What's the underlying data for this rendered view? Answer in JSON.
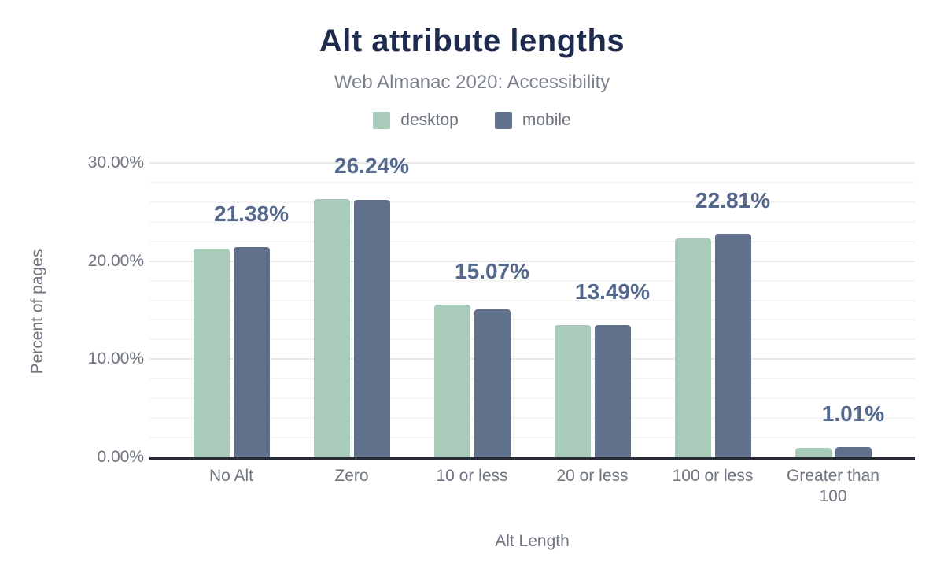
{
  "chart_data": {
    "type": "bar",
    "title": "Alt attribute lengths",
    "subtitle": "Web Almanac 2020: Accessibility",
    "categories": [
      "No Alt",
      "Zero",
      "10 or less",
      "20 or less",
      "100 or less",
      "Greater than 100"
    ],
    "series": [
      {
        "name": "desktop",
        "color": "#a8cbba",
        "values": [
          21.26,
          26.31,
          15.6,
          13.46,
          22.28,
          0.93
        ]
      },
      {
        "name": "mobile",
        "color": "#61708b",
        "values": [
          21.38,
          26.24,
          15.07,
          13.49,
          22.81,
          1.01
        ]
      }
    ],
    "data_labels": [
      "21.38%",
      "26.24%",
      "15.07%",
      "13.49%",
      "22.81%",
      "1.01%"
    ],
    "data_labels_series": "mobile",
    "xlabel": "Alt Length",
    "ylabel": "Percent of pages",
    "ylim": [
      0,
      30
    ],
    "yticks": [
      {
        "value": 0,
        "label": "0.00%"
      },
      {
        "value": 10,
        "label": "10.00%"
      },
      {
        "value": 20,
        "label": "20.00%"
      },
      {
        "value": 30,
        "label": "30.00%"
      }
    ],
    "grid": {
      "minor_step": 2,
      "major_step": 10,
      "orientation": "horizontal"
    },
    "legend_position": "top"
  },
  "colors": {
    "title": "#1e2b4d",
    "subtitle": "#7c828c",
    "axis_text": "#6f7580",
    "data_label": "#54678c",
    "axis_line": "#262b35",
    "gridline_minor": "#f5f5f5",
    "gridline_major": "#e9e9e9",
    "background": "#ffffff"
  }
}
